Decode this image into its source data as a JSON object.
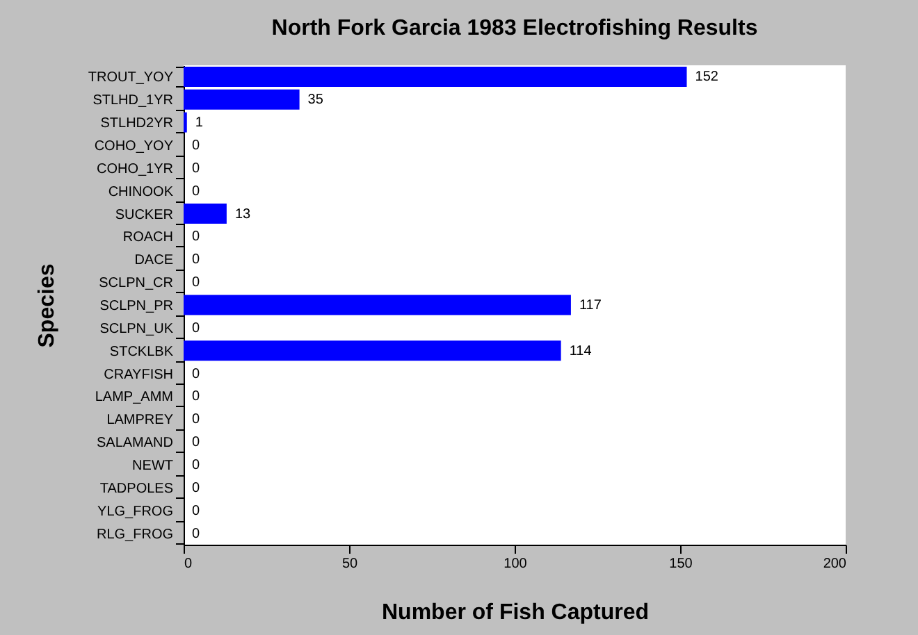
{
  "chart_data": {
    "type": "bar",
    "orientation": "horizontal",
    "title": "North Fork Garcia 1983 Electrofishing Results",
    "xlabel": "Number of Fish Captured",
    "ylabel": "Species",
    "categories": [
      "TROUT_YOY",
      "STLHD_1YR",
      "STLHD2YR",
      "COHO_YOY",
      "COHO_1YR",
      "CHINOOK",
      "SUCKER",
      "ROACH",
      "DACE",
      "SCLPN_CR",
      "SCLPN_PR",
      "SCLPN_UK",
      "STCKLBK",
      "CRAYFISH",
      "LAMP_AMM",
      "LAMPREY",
      "SALAMAND",
      "NEWT",
      "TADPOLES",
      "YLG_FROG",
      "RLG_FROG"
    ],
    "values": [
      152,
      35,
      1,
      0,
      0,
      0,
      13,
      0,
      0,
      0,
      117,
      0,
      114,
      0,
      0,
      0,
      0,
      0,
      0,
      0,
      0
    ],
    "color": "#0000ff",
    "xlim": [
      0,
      200
    ],
    "xticks": [
      0,
      50,
      100,
      150,
      200
    ],
    "data_labels": true,
    "grid": false
  }
}
